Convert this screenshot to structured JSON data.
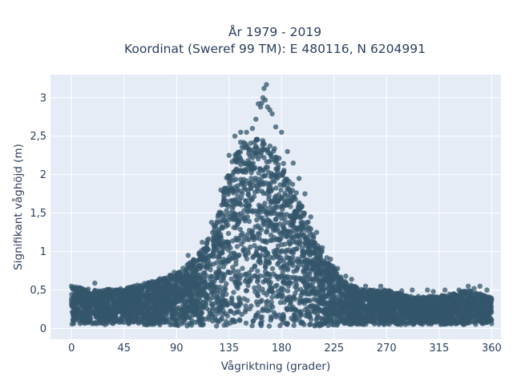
{
  "chart_data": {
    "type": "scatter",
    "title_line1": "År 1979 - 2019",
    "title_line2": "Koordinat (Sweref 99 TM): E 480116, N 6204991",
    "xlabel": "Vågriktning (grader)",
    "ylabel": "Signifikant våghöjd (m)",
    "xlim": [
      -18,
      368
    ],
    "ylim": [
      -0.14,
      3.3
    ],
    "xticks": [
      0,
      45,
      90,
      135,
      180,
      225,
      270,
      315,
      360
    ],
    "xtick_labels": [
      "0",
      "45",
      "90",
      "135",
      "180",
      "225",
      "270",
      "315",
      "360"
    ],
    "yticks": [
      0,
      0.5,
      1,
      1.5,
      2,
      2.5,
      3
    ],
    "ytick_labels": [
      "0",
      "0,5",
      "1",
      "1,5",
      "2",
      "2,5",
      "3"
    ],
    "grid": true,
    "marker_color": "#34566b",
    "background_color": "#e5ecf6",
    "envelope": {
      "x": [
        0,
        20,
        45,
        70,
        90,
        105,
        115,
        125,
        135,
        145,
        155,
        165,
        175,
        185,
        195,
        205,
        215,
        225,
        235,
        250,
        270,
        290,
        315,
        340,
        360
      ],
      "y_max": [
        0.55,
        0.5,
        0.52,
        0.62,
        0.72,
        0.9,
        1.1,
        1.45,
        2.1,
        2.45,
        2.5,
        2.45,
        2.35,
        2.05,
        1.7,
        1.3,
        1.0,
        0.8,
        0.6,
        0.5,
        0.5,
        0.42,
        0.42,
        0.5,
        0.4
      ],
      "y_min": [
        0.05,
        0.05,
        0.05,
        0.04,
        0.03,
        0.03,
        0.03,
        0.03,
        0.03,
        0.03,
        0.03,
        0.03,
        0.03,
        0.03,
        0.03,
        0.03,
        0.03,
        0.04,
        0.05,
        0.05,
        0.05,
        0.05,
        0.05,
        0.05,
        0.06
      ]
    },
    "outliers": [
      {
        "x": 0,
        "y": 0.55
      },
      {
        "x": 3,
        "y": 0.54
      },
      {
        "x": 20,
        "y": 0.59
      },
      {
        "x": 40,
        "y": 0.48
      },
      {
        "x": 60,
        "y": 0.56
      },
      {
        "x": 75,
        "y": 0.63
      },
      {
        "x": 88,
        "y": 0.73
      },
      {
        "x": 100,
        "y": 0.95
      },
      {
        "x": 112,
        "y": 1.12
      },
      {
        "x": 120,
        "y": 1.38
      },
      {
        "x": 128,
        "y": 1.8
      },
      {
        "x": 135,
        "y": 2.25
      },
      {
        "x": 140,
        "y": 2.5
      },
      {
        "x": 145,
        "y": 2.55
      },
      {
        "x": 150,
        "y": 2.55
      },
      {
        "x": 155,
        "y": 2.6
      },
      {
        "x": 158,
        "y": 2.72
      },
      {
        "x": 160,
        "y": 2.92
      },
      {
        "x": 162,
        "y": 2.88
      },
      {
        "x": 163,
        "y": 2.93
      },
      {
        "x": 164,
        "y": 3.0
      },
      {
        "x": 165,
        "y": 3.12
      },
      {
        "x": 166,
        "y": 2.97
      },
      {
        "x": 167,
        "y": 3.17
      },
      {
        "x": 168,
        "y": 2.88
      },
      {
        "x": 170,
        "y": 2.84
      },
      {
        "x": 172,
        "y": 2.79
      },
      {
        "x": 175,
        "y": 2.62
      },
      {
        "x": 180,
        "y": 2.55
      },
      {
        "x": 185,
        "y": 2.3
      },
      {
        "x": 190,
        "y": 2.15
      },
      {
        "x": 195,
        "y": 1.95
      },
      {
        "x": 200,
        "y": 1.75
      },
      {
        "x": 205,
        "y": 1.45
      },
      {
        "x": 210,
        "y": 1.25
      },
      {
        "x": 215,
        "y": 1.05
      },
      {
        "x": 222,
        "y": 0.9
      },
      {
        "x": 228,
        "y": 0.78
      },
      {
        "x": 235,
        "y": 0.68
      },
      {
        "x": 240,
        "y": 0.64
      },
      {
        "x": 252,
        "y": 0.55
      },
      {
        "x": 265,
        "y": 0.55
      },
      {
        "x": 268,
        "y": 0.5
      },
      {
        "x": 283,
        "y": 0.49
      },
      {
        "x": 292,
        "y": 0.5
      },
      {
        "x": 305,
        "y": 0.5
      },
      {
        "x": 310,
        "y": 0.48
      },
      {
        "x": 320,
        "y": 0.5
      },
      {
        "x": 332,
        "y": 0.5
      },
      {
        "x": 340,
        "y": 0.55
      },
      {
        "x": 345,
        "y": 0.52
      },
      {
        "x": 350,
        "y": 0.55
      },
      {
        "x": 356,
        "y": 0.5
      }
    ]
  }
}
